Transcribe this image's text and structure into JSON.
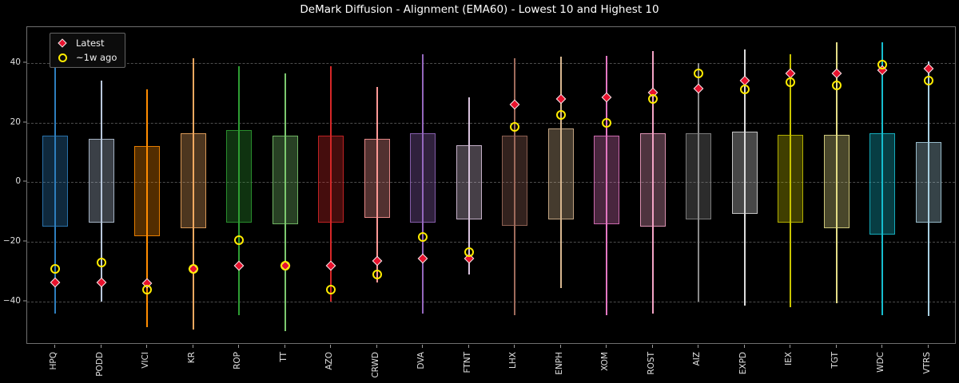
{
  "title": "DeMark Diffusion - Alignment (EMA60) - Lowest 10 and Highest 10",
  "legend": {
    "latest_label": "Latest",
    "week_ago_label": "~1w ago"
  },
  "colors": {
    "background": "#000000",
    "title_text": "#ffffff",
    "tick_text": "#e0e0e0",
    "grid": "#4d4d4d",
    "frame": "#6f6f6f",
    "latest_marker_fill": "#e8112d",
    "latest_marker_edge": "#efefef",
    "week_ago_marker_stroke": "#ffec00",
    "legend_bg": "#0c0c0c",
    "legend_border": "#636363"
  },
  "chart_data": {
    "type": "boxplot-range",
    "title": "DeMark Diffusion - Alignment (EMA60) - Lowest 10 and Highest 10",
    "xlabel": "",
    "ylabel": "",
    "ylim": [
      -54.5,
      52
    ],
    "yticks": [
      40,
      20,
      0,
      -20,
      -40
    ],
    "grid": true,
    "grid_style": "dashed",
    "legend_position": "upper-left",
    "legend_entries": [
      "Latest",
      "~1w ago"
    ],
    "marker_series": [
      {
        "name": "Latest",
        "marker": "diamond",
        "color": "#e8112d"
      },
      {
        "name": "~1w ago",
        "marker": "open-circle",
        "color": "#ffec00"
      }
    ],
    "tickers": [
      {
        "symbol": "HPQ",
        "color": "#2e7ebd",
        "range_high": 43.5,
        "range_low": -44.0,
        "box_high": 15.5,
        "box_low": -15.0,
        "latest": -33.5,
        "week_ago": -29.0
      },
      {
        "symbol": "PODD",
        "color": "#b9c8dc",
        "range_high": 34.0,
        "range_low": -40.0,
        "box_high": 14.5,
        "box_low": -13.5,
        "latest": -33.5,
        "week_ago": -27.0
      },
      {
        "symbol": "VICI",
        "color": "#ff8c00",
        "range_high": 31.0,
        "range_low": -48.5,
        "box_high": 12.0,
        "box_low": -18.0,
        "latest": -34.0,
        "week_ago": -36.0
      },
      {
        "symbol": "KR",
        "color": "#f0a860",
        "range_high": 41.5,
        "range_low": -49.5,
        "box_high": 16.5,
        "box_low": -15.5,
        "latest": -29.0,
        "week_ago": -29.0
      },
      {
        "symbol": "ROP",
        "color": "#2e9e33",
        "range_high": 39.0,
        "range_low": -44.5,
        "box_high": 17.5,
        "box_low": -13.5,
        "latest": -28.0,
        "week_ago": -19.5
      },
      {
        "symbol": "TT",
        "color": "#7cc96f",
        "range_high": 36.5,
        "range_low": -50.0,
        "box_high": 15.5,
        "box_low": -14.0,
        "latest": -28.0,
        "week_ago": -28.0
      },
      {
        "symbol": "AZO",
        "color": "#d62728",
        "range_high": 39.0,
        "range_low": -40.0,
        "box_high": 15.5,
        "box_low": -13.5,
        "latest": -28.0,
        "week_ago": -36.0
      },
      {
        "symbol": "CRWD",
        "color": "#ff9896",
        "range_high": 32.0,
        "range_low": -33.5,
        "box_high": 14.5,
        "box_low": -12.0,
        "latest": -26.5,
        "week_ago": -31.0
      },
      {
        "symbol": "DVA",
        "color": "#9467bd",
        "range_high": 43.0,
        "range_low": -44.0,
        "box_high": 16.5,
        "box_low": -13.5,
        "latest": -25.5,
        "week_ago": -18.5
      },
      {
        "symbol": "FTNT",
        "color": "#d9c3de",
        "range_high": 28.5,
        "range_low": -31.0,
        "box_high": 12.5,
        "box_low": -12.5,
        "latest": -25.5,
        "week_ago": -23.5
      },
      {
        "symbol": "LHX",
        "color": "#9e6b5c",
        "range_high": 41.5,
        "range_low": -44.5,
        "box_high": 15.5,
        "box_low": -14.5,
        "latest": 26.0,
        "week_ago": 18.5
      },
      {
        "symbol": "ENPH",
        "color": "#d8b790",
        "range_high": 42.0,
        "range_low": -35.5,
        "box_high": 18.0,
        "box_low": -12.5,
        "latest": 28.0,
        "week_ago": 22.5
      },
      {
        "symbol": "XOM",
        "color": "#e377c2",
        "range_high": 42.5,
        "range_low": -44.5,
        "box_high": 15.5,
        "box_low": -14.0,
        "latest": 28.5,
        "week_ago": 20.0
      },
      {
        "symbol": "ROST",
        "color": "#f4a3c5",
        "range_high": 44.0,
        "range_low": -44.0,
        "box_high": 16.5,
        "box_low": -15.0,
        "latest": 30.0,
        "week_ago": 28.0
      },
      {
        "symbol": "AIZ",
        "color": "#8a8a8a",
        "range_high": 40.0,
        "range_low": -40.0,
        "box_high": 16.5,
        "box_low": -12.5,
        "latest": 31.5,
        "week_ago": 36.5
      },
      {
        "symbol": "EXPD",
        "color": "#dcdcdc",
        "range_high": 44.5,
        "range_low": -41.5,
        "box_high": 17.0,
        "box_low": -10.5,
        "latest": 34.0,
        "week_ago": 31.0
      },
      {
        "symbol": "IEX",
        "color": "#c8c400",
        "range_high": 43.0,
        "range_low": -42.0,
        "box_high": 16.0,
        "box_low": -13.5,
        "latest": 36.5,
        "week_ago": 33.5
      },
      {
        "symbol": "TGT",
        "color": "#e3dd87",
        "range_high": 47.0,
        "range_low": -40.5,
        "box_high": 16.0,
        "box_low": -15.5,
        "latest": 36.5,
        "week_ago": 32.5
      },
      {
        "symbol": "WDC",
        "color": "#17becf",
        "range_high": 47.0,
        "range_low": -44.5,
        "box_high": 16.5,
        "box_low": -17.5,
        "latest": 37.5,
        "week_ago": 39.5
      },
      {
        "symbol": "VTRS",
        "color": "#a8cfe0",
        "range_high": 40.5,
        "range_low": -45.0,
        "box_high": 13.5,
        "box_low": -13.5,
        "latest": 38.0,
        "week_ago": 34.0
      }
    ]
  }
}
